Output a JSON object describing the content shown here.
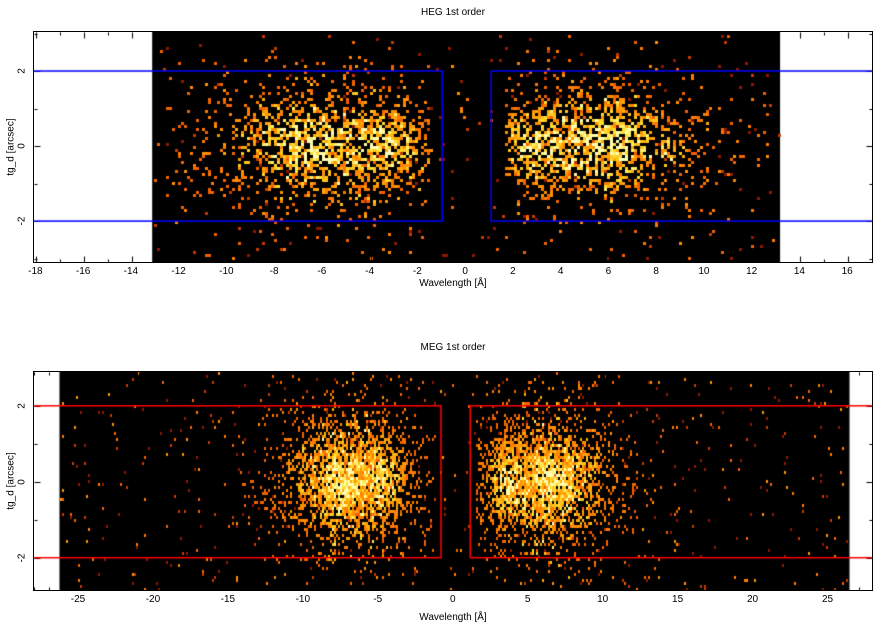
{
  "figure": {
    "background": "#ffffff",
    "frame_color": "#000000"
  },
  "chart_data": [
    {
      "type": "scatter",
      "title": "HEG 1st order",
      "xlabel": "Wavelength [Å]",
      "ylabel": "tg_d [arcsec]",
      "xlim": [
        -18.1,
        17.0
      ],
      "ylim": [
        -3.09,
        3.04
      ],
      "xticks": [
        -18,
        -16,
        -14,
        -12,
        -10,
        -8,
        -6,
        -4,
        -2,
        0,
        2,
        4,
        6,
        8,
        10,
        12,
        14,
        16
      ],
      "yticks": [
        -2,
        0,
        2
      ],
      "xtick_minor_step": 1,
      "ytick_minor_step": 1,
      "grid": false,
      "detector_region": {
        "x": [
          -13.15,
          13.15
        ],
        "color": "#000000"
      },
      "extraction_region": {
        "color": "#0000ff",
        "y": [
          -2,
          2
        ],
        "gap_x": [
          -1.0,
          1.05
        ],
        "line_width": 1.5
      },
      "data_gap": [
        -1.5,
        1.7
      ],
      "point_size": [
        3,
        3
      ],
      "palette": [
        "#8c1a00",
        "#c33b00",
        "#f26300",
        "#ff7b00",
        "#ff9100",
        "#ffa70c",
        "#ffc41e",
        "#ffdc32",
        "#ffef6e",
        "#ffffb4"
      ],
      "seed": 1337,
      "clusters": [
        {
          "cx": -6.2,
          "cy": 0.0,
          "sx": 2.6,
          "sy": 0.85,
          "n": 820
        },
        {
          "cx": -3.4,
          "cy": 0.0,
          "sx": 1.1,
          "sy": 0.65,
          "n": 300
        },
        {
          "cx": -6.5,
          "cy": 0.1,
          "sx": 1.2,
          "sy": 0.6,
          "n": 260
        },
        {
          "cx": -5.5,
          "cy": 0.0,
          "sx": 3.3,
          "sy": 1.3,
          "n": 220
        },
        {
          "cx": 5.3,
          "cy": 0.0,
          "sx": 2.6,
          "sy": 0.85,
          "n": 800
        },
        {
          "cx": 2.9,
          "cy": 0.0,
          "sx": 1.0,
          "sy": 0.65,
          "n": 260
        },
        {
          "cx": 6.2,
          "cy": 0.1,
          "sx": 1.2,
          "sy": 0.6,
          "n": 260
        },
        {
          "cx": 5.5,
          "cy": 0.0,
          "sx": 3.3,
          "sy": 1.3,
          "n": 200
        }
      ],
      "sparse": {
        "n": 300,
        "x": [
          -13.1,
          13.1
        ],
        "y": [
          -3.0,
          2.95
        ]
      }
    },
    {
      "type": "scatter",
      "title": "MEG 1st order",
      "xlabel": "Wavelength [Å]",
      "ylabel": "tg_d [arcsec]",
      "xlim": [
        -28.0,
        27.9
      ],
      "ylim": [
        -2.85,
        2.89
      ],
      "xticks": [
        -25,
        -20,
        -15,
        -10,
        -5,
        0,
        5,
        10,
        15,
        20,
        25
      ],
      "yticks": [
        -2,
        0,
        2
      ],
      "xtick_minor_step": 1,
      "ytick_minor_step": 1,
      "grid": false,
      "detector_region": {
        "x": [
          -26.3,
          26.4
        ],
        "color": "#000000"
      },
      "extraction_region": {
        "color": "#ff0000",
        "y": [
          -2,
          2
        ],
        "gap_x": [
          -0.85,
          1.1
        ],
        "line_width": 1.5
      },
      "data_gap": [
        -1.35,
        1.5
      ],
      "point_size": [
        2,
        3
      ],
      "palette": [
        "#8c1a00",
        "#c33b00",
        "#f26300",
        "#ff7b00",
        "#ff9100",
        "#ffa70c",
        "#ffc41e",
        "#ffdc32",
        "#ffef6e",
        "#ffffb4"
      ],
      "seed": 7741,
      "clusters": [
        {
          "cx": -7.0,
          "cy": 0.0,
          "sx": 2.5,
          "sy": 0.9,
          "n": 1500
        },
        {
          "cx": -7.3,
          "cy": 0.0,
          "sx": 1.2,
          "sy": 0.55,
          "n": 700
        },
        {
          "cx": -4.8,
          "cy": 0.0,
          "sx": 1.0,
          "sy": 0.7,
          "n": 320
        },
        {
          "cx": -7.0,
          "cy": 0.0,
          "sx": 2.8,
          "sy": 1.7,
          "n": 330
        },
        {
          "cx": 6.3,
          "cy": 0.0,
          "sx": 2.5,
          "sy": 0.9,
          "n": 1450
        },
        {
          "cx": 6.4,
          "cy": 0.05,
          "sx": 1.2,
          "sy": 0.55,
          "n": 700
        },
        {
          "cx": 3.6,
          "cy": 0.0,
          "sx": 1.0,
          "sy": 0.7,
          "n": 300
        },
        {
          "cx": 6.3,
          "cy": 0.0,
          "sx": 2.8,
          "sy": 1.7,
          "n": 330
        }
      ],
      "sparse": {
        "n": 620,
        "x": [
          -26.2,
          26.3
        ],
        "y": [
          -3.0,
          2.95
        ]
      }
    }
  ]
}
